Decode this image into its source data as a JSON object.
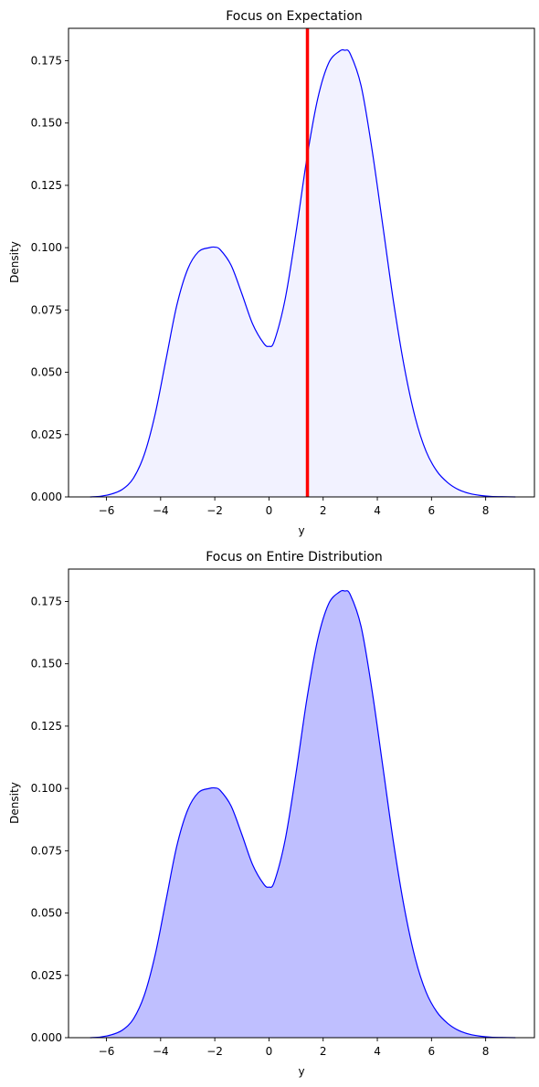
{
  "chart_data": [
    {
      "type": "area",
      "title": "Focus on Expectation",
      "xlabel": "y",
      "ylabel": "Density",
      "xlim": [
        -7.4,
        9.8
      ],
      "ylim": [
        0,
        0.188
      ],
      "x_ticks": [
        -6,
        -4,
        -2,
        0,
        2,
        4,
        6,
        8
      ],
      "y_ticks": [
        0.0,
        0.025,
        0.05,
        0.075,
        0.1,
        0.125,
        0.15,
        0.175
      ],
      "x_tick_labels": [
        "−6",
        "−4",
        "−2",
        "0",
        "2",
        "4",
        "6",
        "8"
      ],
      "y_tick_labels": [
        "0.000",
        "0.025",
        "0.050",
        "0.075",
        "0.100",
        "0.125",
        "0.150",
        "0.175"
      ],
      "grid": false,
      "series": [
        {
          "x": [
            -6.6,
            -6.2,
            -5.8,
            -5.4,
            -5.0,
            -4.6,
            -4.2,
            -3.8,
            -3.4,
            -3.0,
            -2.6,
            -2.2,
            -2.0,
            -1.8,
            -1.4,
            -1.0,
            -0.6,
            -0.2,
            0.0,
            0.2,
            0.6,
            1.0,
            1.4,
            1.8,
            2.2,
            2.6,
            2.8,
            3.0,
            3.4,
            3.8,
            4.2,
            4.6,
            5.0,
            5.4,
            5.8,
            6.2,
            6.6,
            7.0,
            7.4,
            7.8,
            8.2,
            8.6,
            9.1
          ],
          "y": [
            0.0,
            0.0003,
            0.0012,
            0.0031,
            0.0076,
            0.0171,
            0.0333,
            0.0552,
            0.077,
            0.0914,
            0.0984,
            0.1,
            0.1002,
            0.0992,
            0.093,
            0.0815,
            0.0693,
            0.0617,
            0.0604,
            0.0626,
            0.0795,
            0.1062,
            0.1359,
            0.1598,
            0.174,
            0.1788,
            0.1792,
            0.1778,
            0.165,
            0.1397,
            0.1091,
            0.0781,
            0.0519,
            0.0318,
            0.0183,
            0.0103,
            0.0057,
            0.0029,
            0.0014,
            0.0006,
            0.0002,
            0.0001,
            0.0
          ],
          "line_color": "#0000ff",
          "fill_color": "#0000ff",
          "fill_opacity": 0.05
        }
      ],
      "vline": {
        "x": 1.42,
        "color": "#ff0000"
      }
    },
    {
      "type": "area",
      "title": "Focus on Entire Distribution",
      "xlabel": "y",
      "ylabel": "Density",
      "xlim": [
        -7.4,
        9.8
      ],
      "ylim": [
        0,
        0.188
      ],
      "x_ticks": [
        -6,
        -4,
        -2,
        0,
        2,
        4,
        6,
        8
      ],
      "y_ticks": [
        0.0,
        0.025,
        0.05,
        0.075,
        0.1,
        0.125,
        0.15,
        0.175
      ],
      "x_tick_labels": [
        "−6",
        "−4",
        "−2",
        "0",
        "2",
        "4",
        "6",
        "8"
      ],
      "y_tick_labels": [
        "0.000",
        "0.025",
        "0.050",
        "0.075",
        "0.100",
        "0.125",
        "0.150",
        "0.175"
      ],
      "grid": false,
      "series": [
        {
          "x": [
            -6.6,
            -6.2,
            -5.8,
            -5.4,
            -5.0,
            -4.6,
            -4.2,
            -3.8,
            -3.4,
            -3.0,
            -2.6,
            -2.2,
            -2.0,
            -1.8,
            -1.4,
            -1.0,
            -0.6,
            -0.2,
            0.0,
            0.2,
            0.6,
            1.0,
            1.4,
            1.8,
            2.2,
            2.6,
            2.8,
            3.0,
            3.4,
            3.8,
            4.2,
            4.6,
            5.0,
            5.4,
            5.8,
            6.2,
            6.6,
            7.0,
            7.4,
            7.8,
            8.2,
            8.6,
            9.1
          ],
          "y": [
            0.0,
            0.0003,
            0.0012,
            0.0031,
            0.0076,
            0.0171,
            0.0333,
            0.0552,
            0.077,
            0.0914,
            0.0984,
            0.1,
            0.1002,
            0.0992,
            0.093,
            0.0815,
            0.0693,
            0.0617,
            0.0604,
            0.0626,
            0.0795,
            0.1062,
            0.1359,
            0.1598,
            0.174,
            0.1788,
            0.1792,
            0.1778,
            0.165,
            0.1397,
            0.1091,
            0.0781,
            0.0519,
            0.0318,
            0.0183,
            0.0103,
            0.0057,
            0.0029,
            0.0014,
            0.0006,
            0.0002,
            0.0001,
            0.0
          ],
          "line_color": "#0000ff",
          "fill_color": "#0000ff",
          "fill_opacity": 0.25
        }
      ]
    }
  ]
}
